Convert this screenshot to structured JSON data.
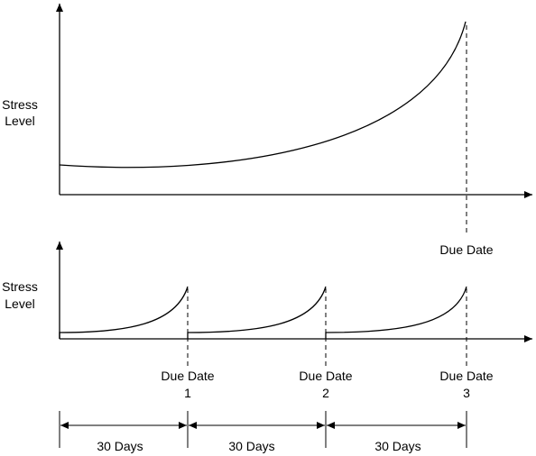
{
  "top_chart": {
    "y_label_line1": "Stress",
    "y_label_line2": "Level",
    "due_label": "Due Date"
  },
  "bottom_chart": {
    "y_label_line1": "Stress",
    "y_label_line2": "Level",
    "periods": [
      {
        "due_label": "Due Date",
        "number": "1"
      },
      {
        "due_label": "Due Date",
        "number": "2"
      },
      {
        "due_label": "Due Date",
        "number": "3"
      }
    ]
  },
  "timeline": {
    "spans": [
      {
        "label": "30 Days"
      },
      {
        "label": "30 Days"
      },
      {
        "label": "30 Days"
      }
    ]
  }
}
